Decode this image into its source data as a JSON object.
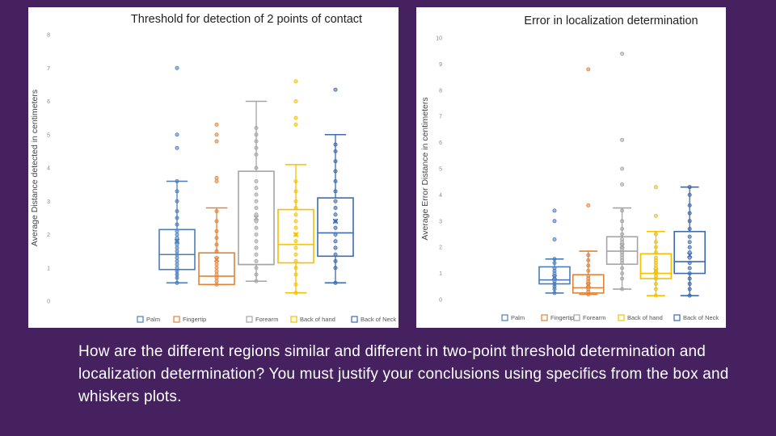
{
  "question": "How are the different regions similar and different in two-point threshold determination and localization determination? You must justify your conclusions using specifics from the box and whiskers plots.",
  "colors": {
    "background": "#45215f",
    "panel": "#ffffff",
    "text": "#ffffff"
  },
  "chart_data": [
    {
      "type": "box",
      "title": "Threshold for detection of 2 points of contact",
      "ylabel": "Average Distance detected in centimeters",
      "ylim": [
        0,
        8
      ],
      "yticks": [
        "0",
        "1",
        "2",
        "3",
        "4",
        "5",
        "6",
        "7",
        "8"
      ],
      "legend": {
        "position": "bottom",
        "entries": [
          "Palm",
          "Fingertip",
          "Forearm",
          "Back of hand",
          "Back of Neck"
        ]
      },
      "grid": false,
      "series": [
        {
          "name": "Palm",
          "color": "#4a7ebb",
          "min": 0.55,
          "q1": 0.95,
          "median": 1.4,
          "q3": 2.15,
          "max": 3.6,
          "mean": 1.8,
          "points": [
            0.55,
            0.7,
            0.8,
            0.9,
            1.0,
            1.1,
            1.2,
            1.3,
            1.4,
            1.5,
            1.6,
            1.7,
            1.8,
            1.9,
            2.0,
            2.1,
            2.3,
            2.5,
            2.7,
            3.0,
            3.3,
            3.6,
            4.6,
            5.0,
            7.0
          ]
        },
        {
          "name": "Fingertip",
          "color": "#e0843a",
          "min": 0.5,
          "q1": 0.5,
          "median": 0.75,
          "q3": 1.45,
          "max": 2.8,
          "mean": 1.25,
          "points": [
            0.5,
            0.6,
            0.7,
            0.8,
            0.9,
            1.0,
            1.1,
            1.2,
            1.3,
            1.5,
            1.7,
            1.9,
            2.1,
            2.4,
            2.7,
            3.6,
            3.7,
            4.8,
            5.0,
            5.3
          ]
        },
        {
          "name": "Forearm",
          "color": "#a5a5a5",
          "min": 0.6,
          "q1": 1.1,
          "median": 1.1,
          "q3": 3.9,
          "max": 6.0,
          "mean": 2.5,
          "points": [
            0.6,
            0.8,
            1.0,
            1.2,
            1.4,
            1.6,
            1.8,
            2.0,
            2.2,
            2.4,
            2.6,
            2.8,
            3.0,
            3.2,
            3.4,
            3.6,
            4.0,
            4.4,
            4.6,
            4.8,
            5.0,
            5.2
          ]
        },
        {
          "name": "Back of hand",
          "color": "#f5c000",
          "min": 0.25,
          "q1": 1.15,
          "median": 1.7,
          "q3": 2.75,
          "max": 4.1,
          "mean": 2.0,
          "points": [
            0.25,
            0.5,
            0.8,
            1.0,
            1.2,
            1.4,
            1.6,
            1.8,
            2.0,
            2.2,
            2.4,
            2.6,
            2.8,
            3.0,
            3.3,
            3.6,
            5.3,
            5.5,
            6.0,
            6.6
          ]
        },
        {
          "name": "Back of Neck",
          "color": "#3d6bb0",
          "min": 0.55,
          "q1": 1.35,
          "median": 2.05,
          "q3": 3.1,
          "max": 5.0,
          "mean": 2.4,
          "points": [
            0.55,
            1.0,
            1.2,
            1.4,
            1.6,
            1.8,
            2.0,
            2.2,
            2.4,
            2.6,
            2.8,
            3.0,
            3.3,
            3.6,
            3.9,
            4.2,
            4.5,
            4.7,
            6.35
          ]
        }
      ]
    },
    {
      "type": "box",
      "title": "Error in localization determination",
      "ylabel": "Average Error Distance in centimeters",
      "ylim": [
        0,
        10
      ],
      "yticks": [
        "0",
        "1",
        "2",
        "3",
        "4",
        "5",
        "6",
        "7",
        "8",
        "9",
        "10"
      ],
      "legend": {
        "position": "bottom",
        "entries": [
          "Palm",
          "Fingertip",
          "Forearm",
          "Back of hand",
          "Back of Neck"
        ]
      },
      "grid": false,
      "series": [
        {
          "name": "Palm",
          "color": "#4a7ebb",
          "min": 0.25,
          "q1": 0.6,
          "median": 0.75,
          "q3": 1.25,
          "max": 1.55,
          "mean": 0.85,
          "points": [
            0.25,
            0.4,
            0.5,
            0.6,
            0.7,
            0.8,
            0.9,
            1.0,
            1.1,
            1.2,
            1.4,
            1.55,
            2.3,
            3.0,
            3.4
          ]
        },
        {
          "name": "Fingertip",
          "color": "#e0843a",
          "min": 0.2,
          "q1": 0.25,
          "median": 0.45,
          "q3": 0.95,
          "max": 1.85,
          "mean": 0.55,
          "points": [
            0.2,
            0.3,
            0.4,
            0.5,
            0.6,
            0.7,
            0.8,
            0.9,
            1.1,
            1.3,
            1.5,
            1.7,
            3.6,
            8.8
          ]
        },
        {
          "name": "Forearm",
          "color": "#a5a5a5",
          "min": 0.4,
          "q1": 1.35,
          "median": 1.85,
          "q3": 2.4,
          "max": 3.5,
          "mean": 2.05,
          "points": [
            0.4,
            0.8,
            1.0,
            1.2,
            1.4,
            1.5,
            1.6,
            1.7,
            1.8,
            1.9,
            2.0,
            2.1,
            2.2,
            2.3,
            2.5,
            2.7,
            3.0,
            3.4,
            4.4,
            5.0,
            6.1,
            9.4
          ]
        },
        {
          "name": "Back of hand",
          "color": "#f5c000",
          "min": 0.15,
          "q1": 0.8,
          "median": 1.0,
          "q3": 1.75,
          "max": 2.6,
          "mean": 1.1,
          "points": [
            0.15,
            0.4,
            0.6,
            0.8,
            0.9,
            1.0,
            1.1,
            1.2,
            1.3,
            1.4,
            1.5,
            1.6,
            1.8,
            2.0,
            2.2,
            2.5,
            3.2,
            4.3
          ]
        },
        {
          "name": "Back of Neck",
          "color": "#3d6bb0",
          "min": 0.15,
          "q1": 1.0,
          "median": 1.45,
          "q3": 2.6,
          "max": 4.3,
          "mean": 1.7,
          "points": [
            0.15,
            0.4,
            0.6,
            0.8,
            1.0,
            1.2,
            1.4,
            1.6,
            1.8,
            2.0,
            2.2,
            2.4,
            2.7,
            3.0,
            3.3,
            3.6,
            4.0,
            4.3
          ]
        }
      ]
    }
  ]
}
